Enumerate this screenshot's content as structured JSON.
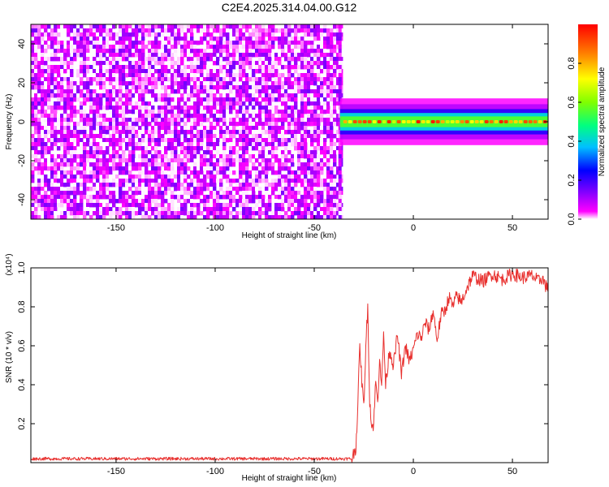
{
  "figure": {
    "title": "C2E4.2025.314.04.00.G12"
  },
  "chart_data": [
    {
      "type": "heatmap",
      "xlabel": "Height of straight line (km)",
      "ylabel": "Frequency (Hz)",
      "xlim": [
        -193,
        68
      ],
      "ylim": [
        -50,
        50
      ],
      "x_ticks": [
        -150,
        -100,
        -50,
        0,
        50
      ],
      "y_ticks": [
        -40,
        -20,
        0,
        20,
        40
      ],
      "colorbar": {
        "label": "Normalized spectral amplitude",
        "range": [
          0,
          1
        ],
        "ticks": [
          0.0,
          0.2,
          0.4,
          0.6,
          0.8
        ],
        "tick_labels": [
          "0.0",
          "0.2",
          "0.4",
          "0.6",
          "0.8"
        ],
        "colormap": [
          "#ffffff",
          "#ff00ff",
          "#8000ff",
          "#0000ff",
          "#00c0ff",
          "#00ff80",
          "#80ff00",
          "#ffff00",
          "#ff8000",
          "#ff0000"
        ]
      },
      "regions": [
        {
          "name": "noise",
          "x_range": [
            -193,
            -37
          ],
          "freq_range": [
            -50,
            50
          ],
          "amplitude_range": [
            0.0,
            0.15
          ]
        },
        {
          "name": "signal_band",
          "x_range": [
            -37,
            68
          ],
          "center_freq": 0,
          "half_width_hz": 5,
          "peak_amplitude": 1.0
        }
      ]
    },
    {
      "type": "line",
      "xlabel": "Height of straight line (km)",
      "ylabel": "SNR (10 * v/v)",
      "multiplier_label": "(x10⁴)",
      "xlim": [
        -193,
        68
      ],
      "ylim": [
        0,
        1.0
      ],
      "x_ticks": [
        -150,
        -100,
        -50,
        0,
        50
      ],
      "y_ticks": [
        0.2,
        0.4,
        0.6,
        0.8,
        1.0
      ],
      "series": [
        {
          "color": "#e8302e",
          "x": [
            -193,
            -180,
            -160,
            -140,
            -120,
            -100,
            -80,
            -60,
            -40,
            -31,
            -29,
            -28,
            -27,
            -26,
            -25,
            -24,
            -23,
            -22,
            -21,
            -20,
            -19,
            -18,
            -17,
            -16,
            -15,
            -14,
            -12,
            -10,
            -8,
            -6,
            -4,
            -2,
            0,
            2,
            4,
            6,
            8,
            10,
            12,
            14,
            16,
            18,
            20,
            22,
            24,
            26,
            28,
            30,
            35,
            40,
            45,
            50,
            55,
            60,
            63,
            65,
            68
          ],
          "y": [
            0.02,
            0.02,
            0.02,
            0.02,
            0.02,
            0.02,
            0.02,
            0.02,
            0.02,
            0.02,
            0.08,
            0.3,
            0.6,
            0.42,
            0.28,
            0.6,
            0.8,
            0.32,
            0.18,
            0.2,
            0.42,
            0.3,
            0.55,
            0.38,
            0.67,
            0.4,
            0.58,
            0.5,
            0.66,
            0.45,
            0.6,
            0.52,
            0.58,
            0.66,
            0.64,
            0.72,
            0.68,
            0.78,
            0.63,
            0.76,
            0.78,
            0.85,
            0.8,
            0.86,
            0.82,
            0.87,
            0.92,
            0.96,
            0.93,
            0.97,
            0.94,
            0.97,
            0.95,
            0.96,
            0.93,
            0.95,
            0.88
          ]
        }
      ]
    }
  ]
}
